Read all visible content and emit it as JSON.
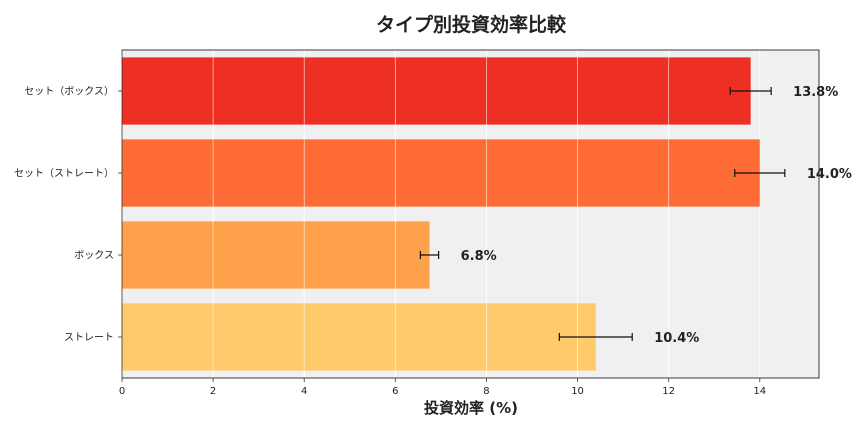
{
  "chart_data": {
    "type": "bar",
    "orientation": "horizontal",
    "title": "タイプ別投資効率比較",
    "xlabel": "投資効率 (%)",
    "ylabel": "",
    "xlim": [
      0,
      15.3
    ],
    "xticks": [
      0,
      2,
      4,
      6,
      8,
      10,
      12,
      14
    ],
    "grid": true,
    "legend": "none",
    "categories": [
      "セット（ボックス）",
      "セット（ストレート）",
      "ボックス",
      "ストレート"
    ],
    "values": [
      13.8,
      14.0,
      6.75,
      10.4
    ],
    "errors": [
      0.45,
      0.55,
      0.2,
      0.8
    ],
    "data_labels": [
      "13.8%",
      "14.0%",
      "6.8%",
      "10.4%"
    ],
    "colors": [
      "#ee3024",
      "#ff6b35",
      "#ffa04a",
      "#ffca6b"
    ],
    "background": "#f0f0f0"
  }
}
